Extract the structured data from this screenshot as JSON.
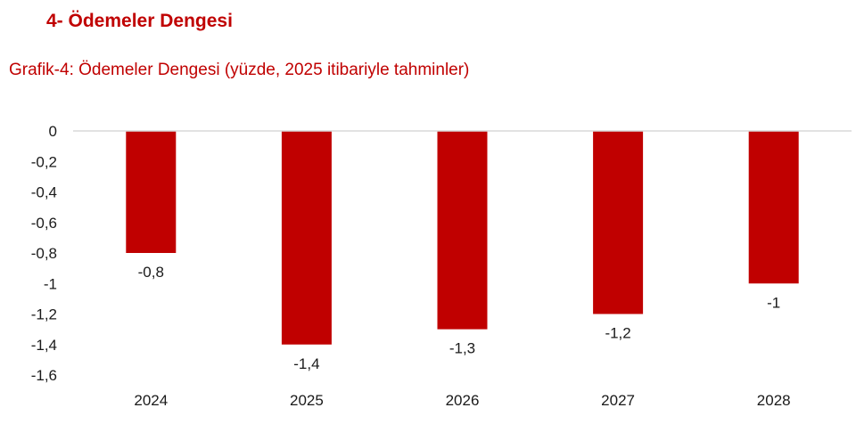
{
  "section": {
    "heading": "4-  Ödemeler Dengesi"
  },
  "colors": {
    "accent": "#c00000",
    "bar": "#c00000",
    "axis": "#d9d9d9",
    "text": "#1a1a1a"
  },
  "chart_data": {
    "type": "bar",
    "title": "Grafik-4: Ödemeler Dengesi (yüzde, 2025 itibariyle tahminler)",
    "categories": [
      "2024",
      "2025",
      "2026",
      "2027",
      "2028"
    ],
    "values": [
      -0.8,
      -1.4,
      -1.3,
      -1.2,
      -1
    ],
    "data_labels": [
      "-0,8",
      "-1,4",
      "-1,3",
      "-1,2",
      "-1"
    ],
    "y_ticks": [
      0,
      -0.2,
      -0.4,
      -0.6,
      -0.8,
      -1,
      -1.2,
      -1.4,
      -1.6
    ],
    "y_tick_labels": [
      "0",
      "-0,2",
      "-0,4",
      "-0,6",
      "-0,8",
      "-1",
      "-1,2",
      "-1,4",
      "-1,6"
    ],
    "ylim": [
      -1.6,
      0
    ],
    "xlabel": "",
    "ylabel": "",
    "grid": false,
    "legend": "none"
  }
}
